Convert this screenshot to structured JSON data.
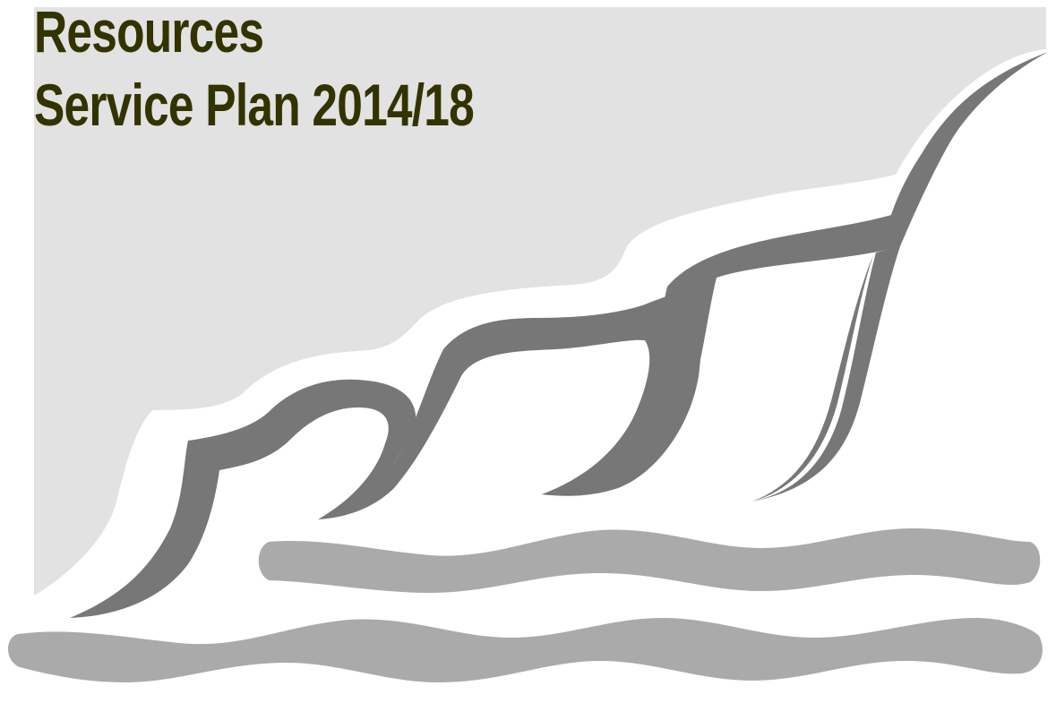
{
  "title": {
    "line1": "Resources",
    "line2": "Service Plan 2014/18"
  },
  "colors": {
    "title_text": "#333300",
    "background_panel": "#e2e2e2",
    "dark_wave": "#777777",
    "light_wave": "#aaaaaa",
    "page_background": "#ffffff"
  },
  "graphic": {
    "icon": "stylised-waves-logo"
  }
}
